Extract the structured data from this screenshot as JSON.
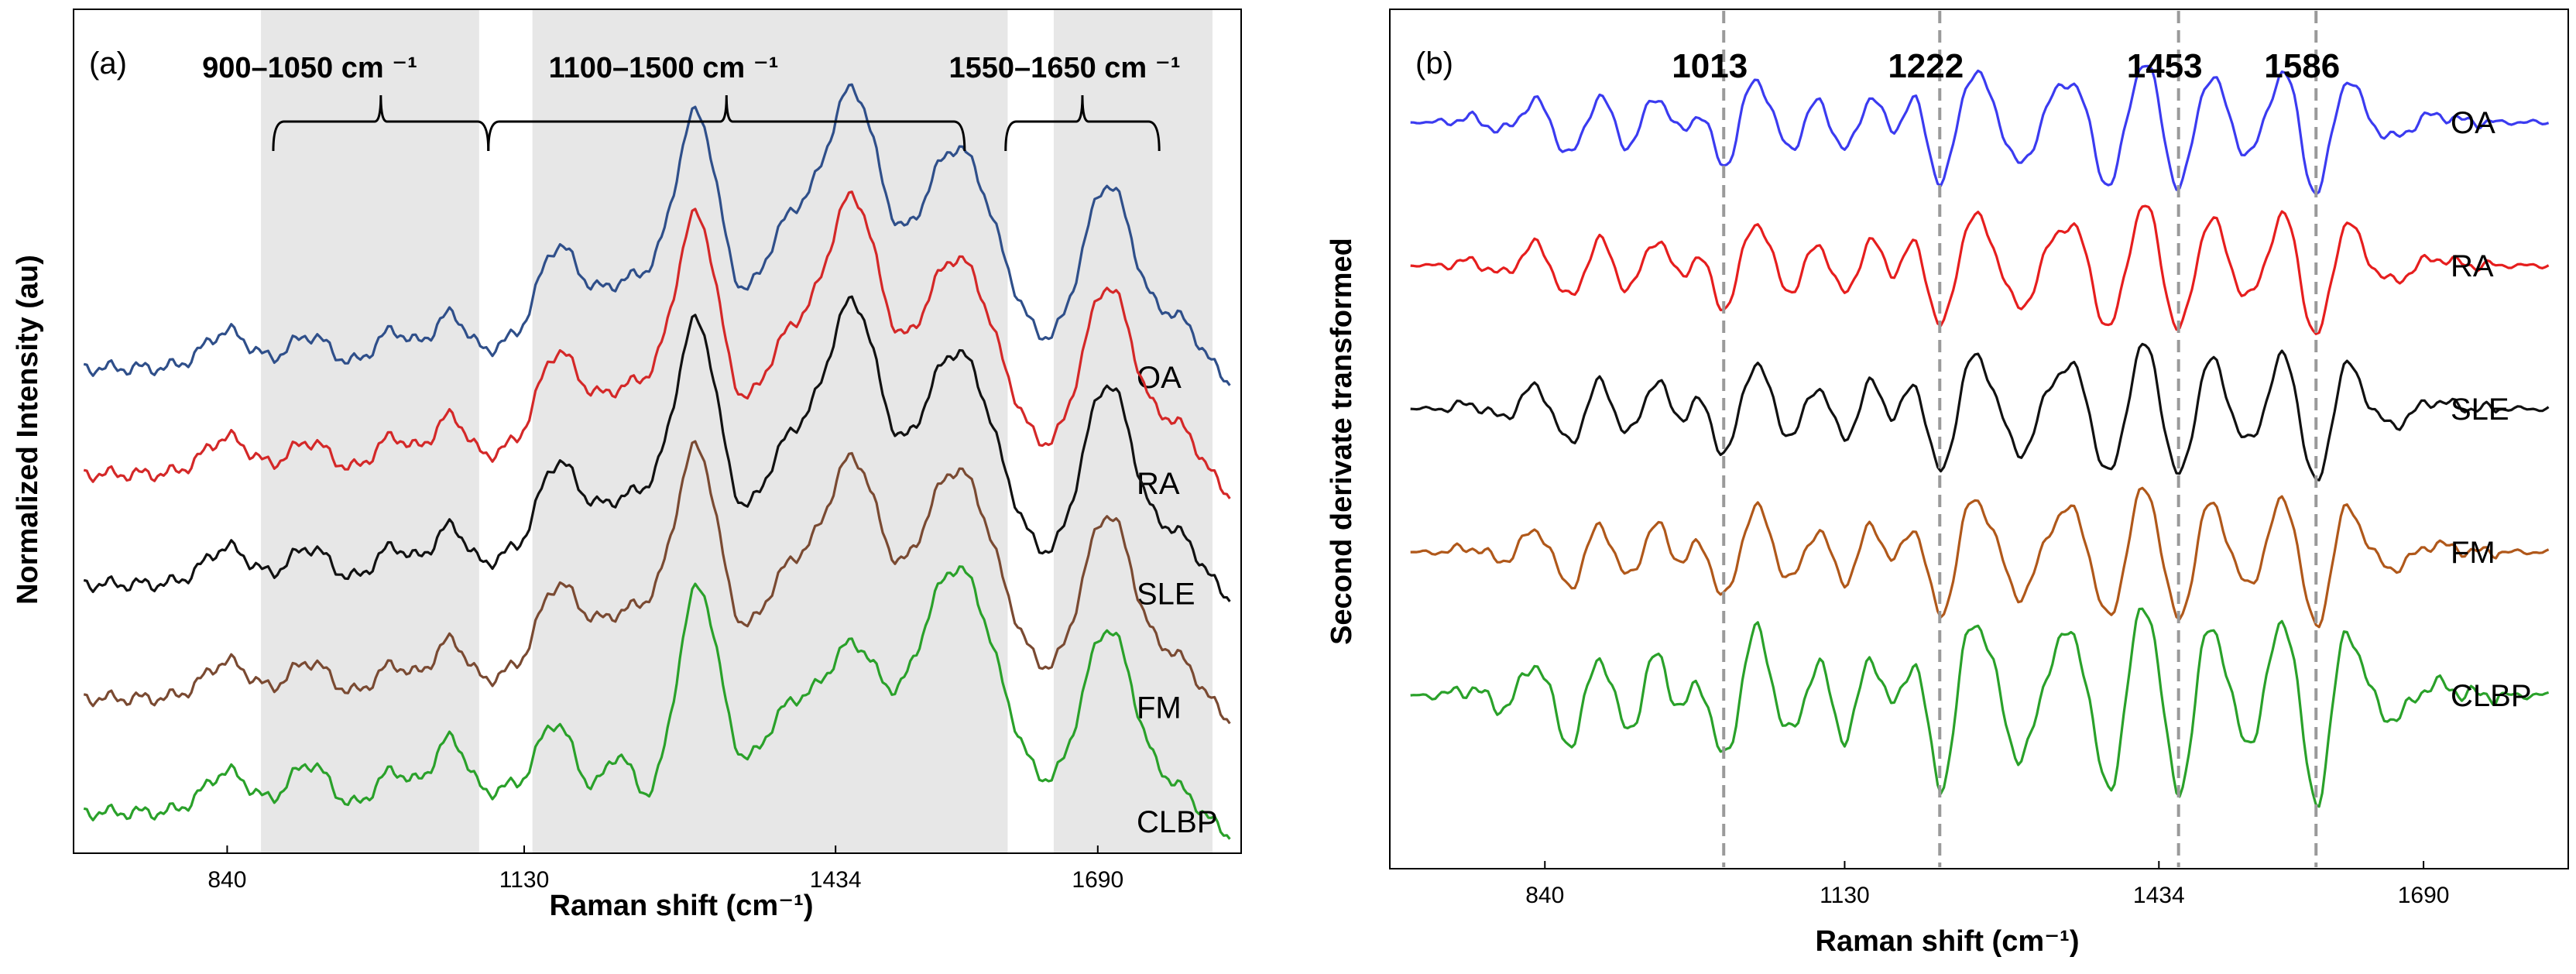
{
  "chart_data": [
    {
      "panel": "(a)",
      "type": "line",
      "xlabel": "Raman shift (cm⁻¹)",
      "ylabel": "Normalized Intensity (au)",
      "xlim": [
        690,
        1830
      ],
      "ylim": [
        -0.02,
        2.05
      ],
      "xticks": [
        "840",
        "1130",
        "1434",
        "1690"
      ],
      "bands": [
        {
          "label": "900–1050 cm ⁻¹",
          "range": [
            885,
            1095
          ]
        },
        {
          "label": "1100–1500 cm ⁻¹",
          "range": [
            1095,
            1560
          ]
        },
        {
          "label": "1550–1650 cm ⁻¹",
          "range": [
            1600,
            1750
          ]
        }
      ],
      "shaded_regions": [
        [
          873,
          1086
        ],
        [
          1138,
          1602
        ],
        [
          1647,
          1802
        ]
      ],
      "series": [
        {
          "name": "OA",
          "color": "#2f4f8a",
          "offset": 1.12,
          "peaks": [
            [
              840,
              0.09,
              22
            ],
            [
              920,
              0.08,
              20
            ],
            [
              1002,
              0.09,
              18
            ],
            [
              1058,
              0.13,
              18
            ],
            [
              1110,
              0.04,
              14
            ],
            [
              1160,
              0.22,
              20
            ],
            [
              1240,
              0.22,
              55
            ],
            [
              1300,
              0.5,
              21
            ],
            [
              1390,
              0.34,
              30
            ],
            [
              1452,
              0.62,
              26
            ],
            [
              1552,
              0.54,
              40
            ],
            [
              1700,
              0.45,
              26
            ],
            [
              1770,
              0.12,
              22
            ]
          ],
          "baseline": 0.05,
          "end": 0.0
        },
        {
          "name": "RA",
          "color": "#d42828",
          "offset": 0.86,
          "peaks": [
            [
              840,
              0.09,
              22
            ],
            [
              920,
              0.08,
              20
            ],
            [
              1002,
              0.09,
              18
            ],
            [
              1058,
              0.14,
              18
            ],
            [
              1110,
              0.04,
              14
            ],
            [
              1160,
              0.22,
              20
            ],
            [
              1240,
              0.22,
              55
            ],
            [
              1300,
              0.51,
              21
            ],
            [
              1390,
              0.32,
              30
            ],
            [
              1452,
              0.62,
              26
            ],
            [
              1552,
              0.53,
              40
            ],
            [
              1700,
              0.46,
              26
            ],
            [
              1770,
              0.12,
              22
            ]
          ],
          "baseline": 0.05,
          "end": -0.02
        },
        {
          "name": "SLE",
          "color": "#111111",
          "offset": 0.59,
          "peaks": [
            [
              840,
              0.09,
              22
            ],
            [
              920,
              0.09,
              20
            ],
            [
              1002,
              0.09,
              18
            ],
            [
              1058,
              0.14,
              18
            ],
            [
              1110,
              0.05,
              14
            ],
            [
              1160,
              0.22,
              20
            ],
            [
              1240,
              0.22,
              55
            ],
            [
              1300,
              0.52,
              21
            ],
            [
              1390,
              0.33,
              30
            ],
            [
              1452,
              0.63,
              26
            ],
            [
              1552,
              0.57,
              40
            ],
            [
              1700,
              0.49,
              26
            ],
            [
              1770,
              0.12,
              22
            ]
          ],
          "baseline": 0.05,
          "end": 0.0
        },
        {
          "name": "FM",
          "color": "#7a4a32",
          "offset": 0.31,
          "peaks": [
            [
              840,
              0.09,
              22
            ],
            [
              920,
              0.09,
              20
            ],
            [
              1002,
              0.08,
              18
            ],
            [
              1058,
              0.14,
              18
            ],
            [
              1110,
              0.04,
              14
            ],
            [
              1160,
              0.2,
              20
            ],
            [
              1240,
              0.22,
              55
            ],
            [
              1300,
              0.49,
              21
            ],
            [
              1390,
              0.3,
              30
            ],
            [
              1452,
              0.53,
              26
            ],
            [
              1552,
              0.56,
              40
            ],
            [
              1700,
              0.45,
              26
            ],
            [
              1770,
              0.1,
              22
            ]
          ],
          "baseline": 0.05,
          "end": -0.02
        },
        {
          "name": "CLBP",
          "color": "#2aa12a",
          "offset": 0.03,
          "peaks": [
            [
              840,
              0.1,
              22
            ],
            [
              920,
              0.12,
              20
            ],
            [
              1002,
              0.1,
              18
            ],
            [
              1058,
              0.18,
              18
            ],
            [
              1110,
              0.05,
              14
            ],
            [
              1160,
              0.22,
              20
            ],
            [
              1222,
              0.14,
              14
            ],
            [
              1300,
              0.55,
              21
            ],
            [
              1390,
              0.25,
              30
            ],
            [
              1452,
              0.36,
              26
            ],
            [
              1552,
              0.6,
              40
            ],
            [
              1700,
              0.45,
              26
            ],
            [
              1770,
              0.06,
              22
            ]
          ],
          "baseline": 0.05,
          "end": -0.02
        }
      ]
    },
    {
      "panel": "(b)",
      "type": "line",
      "xlabel": "Raman shift (cm⁻¹)",
      "ylabel": "Second derivate transformed",
      "xlim": [
        690,
        1830
      ],
      "ylim": [
        -0.8,
        4.9
      ],
      "xticks": [
        "840",
        "1130",
        "1434",
        "1690"
      ],
      "peak_markers": [
        {
          "label": "1013",
          "x": 1013
        },
        {
          "label": "1222",
          "x": 1222
        },
        {
          "label": "1453",
          "x": 1453
        },
        {
          "label": "1586",
          "x": 1586
        }
      ],
      "series": [
        {
          "name": "OA",
          "color": "#3b3bf0",
          "offset": 4.15,
          "amp": 1.0
        },
        {
          "name": "RA",
          "color": "#e61e1e",
          "offset": 3.2,
          "amp": 1.0
        },
        {
          "name": "SLE",
          "color": "#111111",
          "offset": 2.25,
          "amp": 1.05
        },
        {
          "name": "FM",
          "color": "#b0581a",
          "offset": 1.3,
          "amp": 1.05
        },
        {
          "name": "CLBP",
          "color": "#2aa12a",
          "offset": 0.35,
          "amp": 1.5
        }
      ],
      "components": [
        [
          800,
          0.12,
          16
        ],
        [
          865,
          0.46,
          17
        ],
        [
          920,
          0.42,
          16
        ],
        [
          975,
          0.42,
          16
        ],
        [
          1013,
          0.75,
          15
        ],
        [
          1080,
          0.42,
          17
        ],
        [
          1130,
          0.55,
          16
        ],
        [
          1180,
          0.45,
          16
        ],
        [
          1222,
          0.95,
          15
        ],
        [
          1300,
          0.55,
          17
        ],
        [
          1385,
          0.82,
          16
        ],
        [
          1453,
          0.85,
          15
        ],
        [
          1520,
          0.42,
          16
        ],
        [
          1586,
          0.95,
          15
        ],
        [
          1660,
          0.2,
          20
        ]
      ]
    }
  ]
}
